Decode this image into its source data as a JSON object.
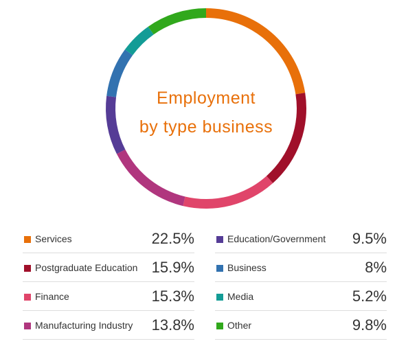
{
  "chart_data": {
    "type": "pie",
    "title_lines": [
      "Employment",
      "by type business"
    ],
    "title_color": "#E8700A",
    "categories": [
      "Services",
      "Postgraduate Education",
      "Finance",
      "Manufacturing Industry",
      "Education/Government",
      "Business",
      "Media",
      "Other"
    ],
    "values": [
      22.5,
      15.9,
      15.3,
      13.8,
      9.5,
      8,
      5.2,
      9.8
    ],
    "value_labels": [
      "22.5%",
      "15.9%",
      "15.3%",
      "13.8%",
      "9.5%",
      "8%",
      "5.2%",
      "9.8%"
    ],
    "colors": [
      "#E8700A",
      "#A0102A",
      "#E0456A",
      "#B0367E",
      "#553C96",
      "#3272B0",
      "#139C96",
      "#31A81C"
    ],
    "legend_placement": "bottom"
  }
}
